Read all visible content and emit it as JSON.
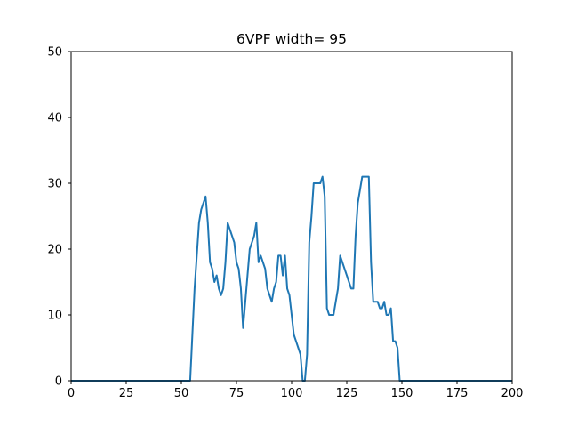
{
  "chart_data": {
    "type": "line",
    "title": "6VPF width= 95",
    "xlabel": "",
    "ylabel": "",
    "xlim": [
      0,
      200
    ],
    "ylim": [
      0,
      50
    ],
    "xticks": [
      0,
      25,
      50,
      75,
      100,
      125,
      150,
      175,
      200
    ],
    "yticks": [
      0,
      10,
      20,
      30,
      40,
      50
    ],
    "grid": false,
    "line_color": "#1f77b4",
    "series": [
      {
        "points": [
          [
            0,
            0
          ],
          [
            54,
            0
          ],
          [
            55,
            7
          ],
          [
            56,
            14
          ],
          [
            57,
            19
          ],
          [
            58,
            24
          ],
          [
            59,
            26
          ],
          [
            60,
            27
          ],
          [
            61,
            28
          ],
          [
            62,
            24
          ],
          [
            63,
            18
          ],
          [
            64,
            17
          ],
          [
            65,
            15
          ],
          [
            66,
            16
          ],
          [
            67,
            14
          ],
          [
            68,
            13
          ],
          [
            69,
            14
          ],
          [
            70,
            18
          ],
          [
            71,
            24
          ],
          [
            72,
            23
          ],
          [
            73,
            22
          ],
          [
            74,
            21
          ],
          [
            75,
            18
          ],
          [
            76,
            17
          ],
          [
            77,
            14
          ],
          [
            78,
            8
          ],
          [
            79,
            12
          ],
          [
            80,
            16
          ],
          [
            81,
            20
          ],
          [
            82,
            21
          ],
          [
            83,
            22
          ],
          [
            84,
            24
          ],
          [
            85,
            18
          ],
          [
            86,
            19
          ],
          [
            87,
            18
          ],
          [
            88,
            17
          ],
          [
            89,
            14
          ],
          [
            90,
            13
          ],
          [
            91,
            12
          ],
          [
            92,
            14
          ],
          [
            93,
            15
          ],
          [
            94,
            19
          ],
          [
            95,
            19
          ],
          [
            96,
            16
          ],
          [
            97,
            19
          ],
          [
            98,
            14
          ],
          [
            99,
            13
          ],
          [
            100,
            10
          ],
          [
            101,
            7
          ],
          [
            102,
            6
          ],
          [
            103,
            5
          ],
          [
            104,
            4
          ],
          [
            105,
            0
          ],
          [
            106,
            0
          ],
          [
            107,
            4
          ],
          [
            108,
            21
          ],
          [
            109,
            25
          ],
          [
            110,
            30
          ],
          [
            111,
            30
          ],
          [
            112,
            30
          ],
          [
            113,
            30
          ],
          [
            114,
            31
          ],
          [
            115,
            28
          ],
          [
            116,
            11
          ],
          [
            117,
            10
          ],
          [
            118,
            10
          ],
          [
            119,
            10
          ],
          [
            120,
            12
          ],
          [
            121,
            14
          ],
          [
            122,
            19
          ],
          [
            123,
            18
          ],
          [
            124,
            17
          ],
          [
            125,
            16
          ],
          [
            126,
            15
          ],
          [
            127,
            14
          ],
          [
            128,
            14
          ],
          [
            129,
            22
          ],
          [
            130,
            27
          ],
          [
            131,
            29
          ],
          [
            132,
            31
          ],
          [
            133,
            31
          ],
          [
            134,
            31
          ],
          [
            135,
            31
          ],
          [
            136,
            18
          ],
          [
            137,
            12
          ],
          [
            138,
            12
          ],
          [
            139,
            12
          ],
          [
            140,
            11
          ],
          [
            141,
            11
          ],
          [
            142,
            12
          ],
          [
            143,
            10
          ],
          [
            144,
            10
          ],
          [
            145,
            11
          ],
          [
            146,
            6
          ],
          [
            147,
            6
          ],
          [
            148,
            5
          ],
          [
            149,
            0
          ],
          [
            200,
            0
          ]
        ]
      }
    ]
  }
}
